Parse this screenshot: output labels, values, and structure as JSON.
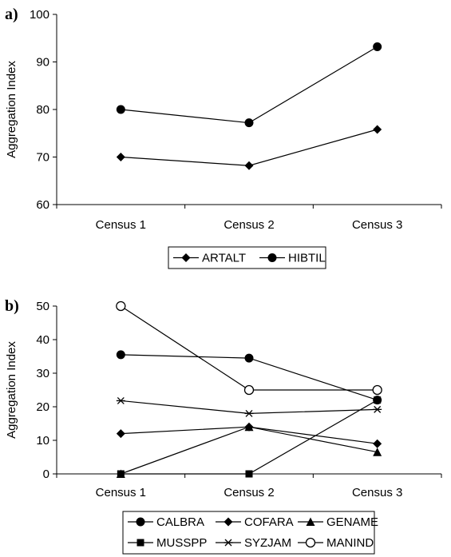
{
  "panel_labels": [
    "a)",
    "b)"
  ],
  "chart_data": [
    {
      "type": "line",
      "ylabel": "Aggregation Index",
      "xlabel": "",
      "categories": [
        "Census 1",
        "Census 2",
        "Census 3"
      ],
      "ylim": [
        60,
        100
      ],
      "yticks": [
        60,
        70,
        80,
        90,
        100
      ],
      "grid": false,
      "legend": "bottom",
      "series": [
        {
          "name": "ARTALT",
          "marker": "diamond",
          "values": [
            70,
            68.2,
            75.8
          ]
        },
        {
          "name": "HIBTIL",
          "marker": "circle",
          "values": [
            80,
            77.2,
            93.2
          ]
        }
      ]
    },
    {
      "type": "line",
      "ylabel": "Aggregation Index",
      "xlabel": "",
      "categories": [
        "Census 1",
        "Census 2",
        "Census 3"
      ],
      "ylim": [
        0,
        50
      ],
      "yticks": [
        0,
        10,
        20,
        30,
        40,
        50
      ],
      "grid": false,
      "legend": "bottom",
      "series": [
        {
          "name": "CALBRA",
          "marker": "circle",
          "values": [
            35.5,
            34.5,
            22
          ]
        },
        {
          "name": "COFARA",
          "marker": "diamond",
          "values": [
            12,
            14,
            9
          ]
        },
        {
          "name": "GENAME",
          "marker": "triangle",
          "values": [
            0,
            14,
            6.5
          ]
        },
        {
          "name": "MUSSPP",
          "marker": "square",
          "values": [
            0,
            0,
            22
          ]
        },
        {
          "name": "SYZJAM",
          "marker": "asterisk",
          "values": [
            21.8,
            18,
            19.2
          ]
        },
        {
          "name": "MANIND",
          "marker": "open-circle",
          "values": [
            50,
            25,
            25
          ]
        }
      ]
    }
  ]
}
